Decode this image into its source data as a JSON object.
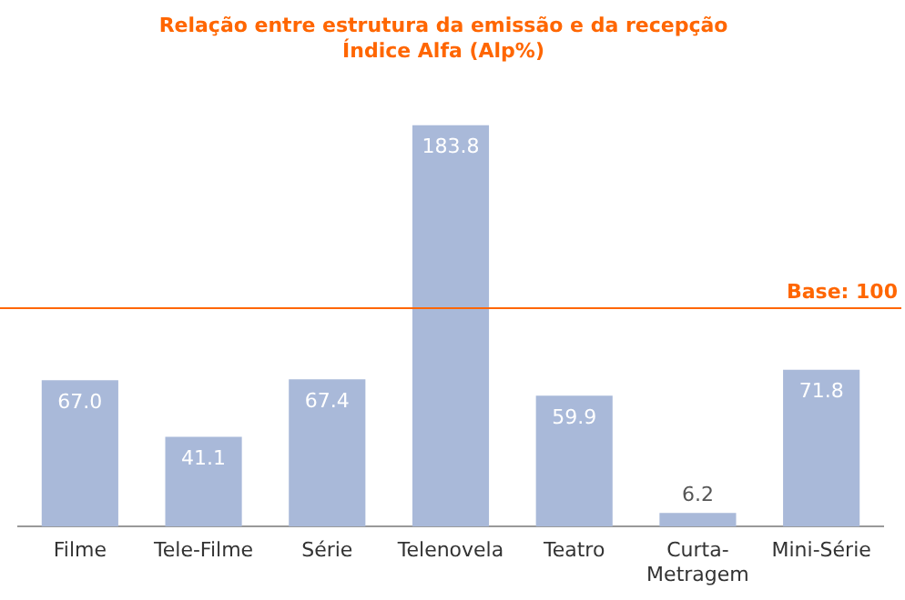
{
  "chart_data": {
    "type": "bar",
    "title": "Relação entre estrutura da emissão e da recepção",
    "subtitle": "Índice Alfa (Alp%)",
    "categories": [
      "Filme",
      "Tele-Filme",
      "Série",
      "Telenovela",
      "Teatro",
      "Curta-Metragem",
      "Mini-Série"
    ],
    "values": [
      67.0,
      41.1,
      67.4,
      183.8,
      59.9,
      6.2,
      71.8
    ],
    "value_labels": [
      "67.0",
      "41.1",
      "67.4",
      "183.8",
      "59.9",
      "6.2",
      "71.8"
    ],
    "color": "#a9b9d9",
    "tick_labels": "x",
    "grid": false,
    "legend": false,
    "ref_lines": [
      {
        "axis": "y",
        "value": 100,
        "label": "Base: 100",
        "color": "#ff6600"
      }
    ]
  }
}
